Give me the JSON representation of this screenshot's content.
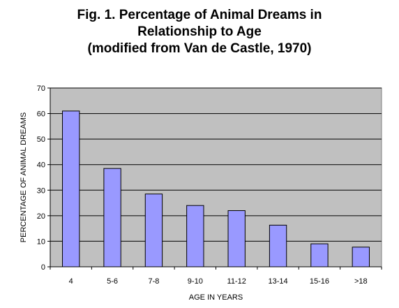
{
  "chart_data": {
    "type": "bar",
    "title_lines": [
      "Fig. 1. Percentage of Animal Dreams in",
      "Relationship to Age",
      "(modified from Van de Castle, 1970)"
    ],
    "xlabel": "AGE IN YEARS",
    "ylabel": "PERCENTAGE OF ANIMAL DREAMS",
    "categories": [
      "4",
      "5-6",
      "7-8",
      "9-10",
      "11-12",
      "13-14",
      "15-16",
      ">18"
    ],
    "values": [
      61,
      38.5,
      28.5,
      24,
      22,
      16.3,
      9,
      7.7
    ],
    "ylim": [
      0,
      70
    ],
    "yticks": [
      0,
      10,
      20,
      30,
      40,
      50,
      60,
      70
    ],
    "grid": true,
    "legend": "none",
    "colors": {
      "bar_fill": "#9999ff",
      "bar_stroke": "#000000",
      "plot_background": "#c0c0c0",
      "gridline": "#000000"
    }
  }
}
